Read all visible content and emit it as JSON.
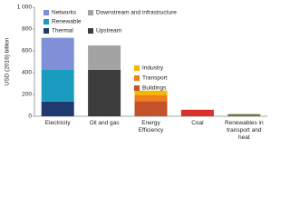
{
  "chart_data": {
    "type": "bar",
    "stacked": true,
    "y_label": "USD (2016) billion",
    "categories": [
      "Electricity",
      "Oil and gas",
      "Energy Efficiency",
      "Coal",
      "Renewables in transport and heat"
    ],
    "ylim": [
      0,
      1000
    ],
    "yticks": [
      0,
      200,
      400,
      600,
      800,
      {
        "value": 1000,
        "label": "1 000"
      }
    ],
    "series": [
      {
        "name": "Thermal",
        "color": "#1f3a6e",
        "values": [
          135,
          null,
          null,
          null,
          null
        ]
      },
      {
        "name": "Renewable",
        "color": "#1a9bc0",
        "values": [
          290,
          null,
          null,
          null,
          null
        ]
      },
      {
        "name": "Networks",
        "color": "#7f8fd8",
        "values": [
          295,
          null,
          null,
          null,
          null
        ]
      },
      {
        "name": "Upstream",
        "color": "#3c3c3c",
        "values": [
          null,
          425,
          null,
          null,
          null
        ]
      },
      {
        "name": "Downstream and infrastructure",
        "color": "#a3a3a3",
        "values": [
          null,
          225,
          null,
          null,
          null
        ]
      },
      {
        "name": "Buildings",
        "color": "#c4522a",
        "values": [
          null,
          null,
          140,
          null,
          null
        ]
      },
      {
        "name": "Transport",
        "color": "#f07f1a",
        "values": [
          null,
          null,
          55,
          null,
          null
        ]
      },
      {
        "name": "Industry",
        "color": "#f5b800",
        "values": [
          null,
          null,
          40,
          null,
          null
        ]
      },
      {
        "color": "#d9302a",
        "values": [
          null,
          null,
          null,
          60,
          null
        ]
      },
      {
        "color": "#6b7a3b",
        "values": [
          null,
          null,
          null,
          null,
          20
        ]
      }
    ]
  }
}
